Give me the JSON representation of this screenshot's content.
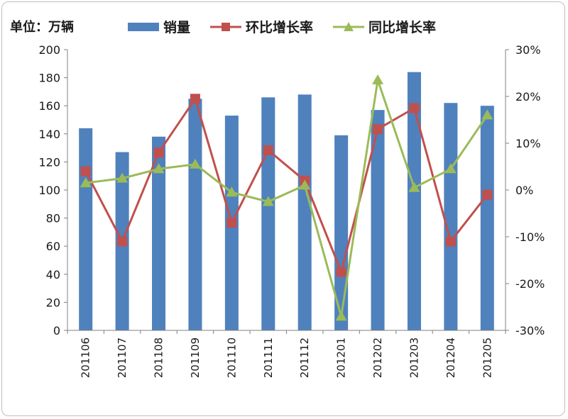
{
  "header": {
    "unit_label": "单位：万辆"
  },
  "legend": {
    "sales_label": "销量",
    "mom_label": "环比增长率",
    "yoy_label": "同比增长率"
  },
  "colors": {
    "bar": "#4f81bd",
    "mom": "#c0504d",
    "yoy": "#9bbb59"
  },
  "chart_data": {
    "type": "bar",
    "categories": [
      "201106",
      "201107",
      "201108",
      "201109",
      "201110",
      "201111",
      "201112",
      "201201",
      "201202",
      "201203",
      "201204",
      "201205"
    ],
    "series": [
      {
        "name": "销量",
        "type": "bar",
        "axis": "left",
        "values": [
          144,
          127,
          138,
          165,
          153,
          166,
          168,
          139,
          157,
          184,
          162,
          160
        ]
      },
      {
        "name": "环比增长率",
        "type": "line",
        "axis": "right",
        "unit": "%",
        "values": [
          4,
          -11,
          8,
          19.5,
          -7,
          8.5,
          2,
          -17.5,
          13,
          17.5,
          -11,
          -1
        ]
      },
      {
        "name": "同比增长率",
        "type": "line",
        "axis": "right",
        "unit": "%",
        "values": [
          1.5,
          2.5,
          4.5,
          5.5,
          -0.5,
          -2.5,
          1,
          -27,
          23.5,
          0.5,
          4.5,
          16
        ]
      }
    ],
    "y_left": {
      "min": 0,
      "max": 200,
      "ticks": [
        "0",
        "20",
        "40",
        "60",
        "80",
        "100",
        "120",
        "140",
        "160",
        "180",
        "200"
      ]
    },
    "y_right": {
      "min": -30,
      "max": 30,
      "ticks": [
        "-30%",
        "-20%",
        "-10%",
        "0%",
        "10%",
        "20%",
        "30%"
      ]
    },
    "grid": false,
    "legend_position": "top"
  }
}
